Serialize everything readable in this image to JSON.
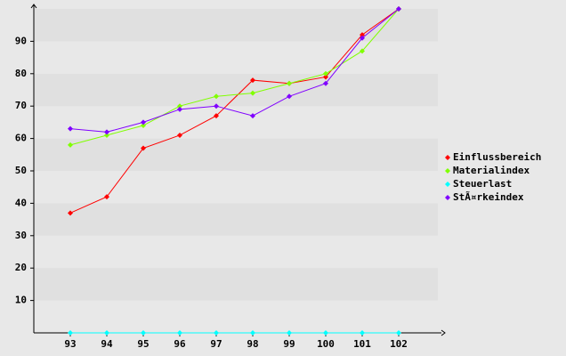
{
  "chart_data": {
    "type": "line",
    "categories": [
      "93",
      "94",
      "95",
      "96",
      "97",
      "98",
      "99",
      "100",
      "101",
      "102"
    ],
    "series": [
      {
        "name": "Einflussbereich",
        "color": "#ff0000",
        "values": [
          37,
          42,
          57,
          61,
          67,
          78,
          77,
          79,
          92,
          100
        ]
      },
      {
        "name": "Materialindex",
        "color": "#80ff00",
        "values": [
          58,
          61,
          64,
          70,
          73,
          74,
          77,
          80,
          87,
          100
        ]
      },
      {
        "name": "Steuerlast",
        "color": "#00ffff",
        "values": [
          0,
          0,
          0,
          0,
          0,
          0,
          0,
          0,
          0,
          0
        ]
      },
      {
        "name": "StÃ¤rkeindex",
        "color": "#8000ff",
        "values": [
          63,
          62,
          65,
          69,
          70,
          67,
          73,
          77,
          91,
          100
        ]
      }
    ],
    "ylim": [
      0,
      100
    ],
    "yticks": [
      10,
      20,
      30,
      40,
      50,
      60,
      70,
      80,
      90
    ],
    "legend": "right"
  }
}
